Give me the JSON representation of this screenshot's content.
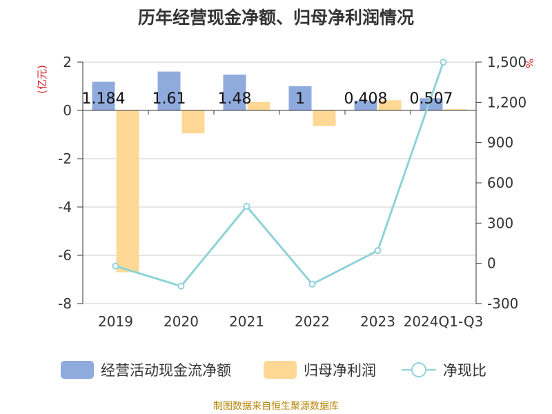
{
  "title": "历年经营现金净额、归母净利润情况",
  "source": "制图数据来自恒生聚源数据库",
  "colors": {
    "cash_flow": "#8faadc",
    "net_profit": "#ffd896",
    "ratio": "#8ed3d8"
  },
  "chart_data": {
    "type": "bar",
    "categories": [
      "2019",
      "2020",
      "2021",
      "2022",
      "2023",
      "2024Q1-Q3"
    ],
    "left_axis": {
      "unit": "(亿元)",
      "ylim": [
        -8,
        2
      ],
      "ticks": [
        "2",
        "0",
        "-2",
        "-4",
        "-6",
        "-8"
      ]
    },
    "right_axis": {
      "unit": "%",
      "ylim": [
        -300,
        1500
      ],
      "ticks": [
        "1,500",
        "1,200",
        "900",
        "600",
        "300",
        "0",
        "-300"
      ]
    },
    "grid": true,
    "legend_position": "bottom",
    "series": [
      {
        "name": "经营活动现金流净额",
        "type": "bar",
        "axis": "left",
        "values": [
          1.184,
          1.61,
          1.48,
          1.0,
          0.408,
          0.507
        ],
        "labels": [
          "1.184",
          "1.61",
          "1.48",
          "1",
          "0.408",
          "0.507"
        ]
      },
      {
        "name": "归母净利润",
        "type": "bar",
        "axis": "left",
        "values": [
          -6.7,
          -0.95,
          0.35,
          -0.65,
          0.42,
          0.05
        ]
      },
      {
        "name": "净现比",
        "type": "line",
        "axis": "right",
        "values": [
          -20,
          -170,
          425,
          -155,
          95,
          1500
        ]
      }
    ]
  }
}
